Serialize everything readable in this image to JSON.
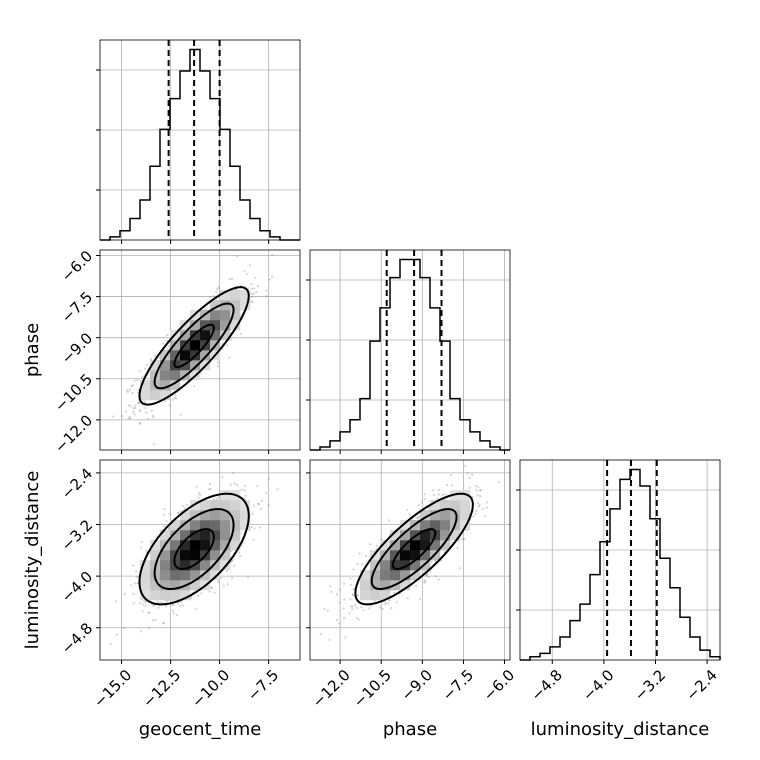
{
  "chart_data": {
    "type": "corner",
    "parameters": [
      "geocent_time",
      "phase",
      "luminosity_distance"
    ],
    "axis_labels": {
      "geocent_time": "geocent_time",
      "phase": "phase",
      "luminosity_distance": "luminosity_distance"
    },
    "ranges": {
      "geocent_time": [
        -16.1,
        -5.9
      ],
      "phase": [
        -13.1,
        -5.8
      ],
      "luminosity_distance": [
        -5.3,
        -2.2
      ]
    },
    "ticks": {
      "geocent_time": [
        -15.0,
        -12.5,
        -10.0,
        -7.5
      ],
      "phase": [
        -12.0,
        -10.5,
        -9.0,
        -7.5,
        -6.0
      ],
      "luminosity_distance": [
        -4.8,
        -4.0,
        -3.2,
        -2.4
      ]
    },
    "tick_labels": {
      "geocent_time": [
        "−15.0",
        "−12.5",
        "−10.0",
        "−7.5"
      ],
      "phase": [
        "−12.0",
        "−10.5",
        "−9.0",
        "−7.5",
        "−6.0"
      ],
      "luminosity_distance": [
        "−4.8",
        "−4.0",
        "−3.2",
        "−2.4"
      ]
    },
    "quantiles": {
      "geocent_time": [
        -12.6,
        -11.3,
        -10.0
      ],
      "phase": [
        -10.3,
        -9.3,
        -8.3
      ],
      "luminosity_distance": [
        -3.95,
        -3.58,
        -3.18
      ]
    },
    "histograms": {
      "geocent_time": {
        "edges": [
          -16.1,
          -15.59,
          -15.08,
          -14.57,
          -14.06,
          -13.55,
          -13.04,
          -12.53,
          -12.02,
          -11.51,
          -11.0,
          -10.49,
          -9.98,
          -9.47,
          -8.96,
          -8.45,
          -7.94,
          -7.43,
          -6.92,
          -6.41,
          -5.9
        ],
        "counts": [
          0,
          1,
          3,
          7,
          13,
          24,
          36,
          46,
          55,
          62,
          55,
          46,
          36,
          24,
          13,
          7,
          3,
          1,
          0,
          0
        ]
      },
      "phase": {
        "edges": [
          -13.1,
          -12.735,
          -12.37,
          -12.005,
          -11.64,
          -11.275,
          -10.91,
          -10.545,
          -10.18,
          -9.815,
          -9.45,
          -9.085,
          -8.72,
          -8.355,
          -7.99,
          -7.625,
          -7.26,
          -6.895,
          -6.53,
          -6.165,
          -5.8
        ],
        "counts": [
          0,
          1,
          3,
          6,
          10,
          17,
          36,
          47,
          57,
          63,
          63,
          57,
          47,
          36,
          17,
          10,
          6,
          3,
          1,
          0
        ]
      },
      "luminosity_distance": {
        "edges": [
          -5.3,
          -5.145,
          -4.99,
          -4.835,
          -4.68,
          -4.525,
          -4.37,
          -4.215,
          -4.06,
          -3.905,
          -3.75,
          -3.595,
          -3.44,
          -3.285,
          -3.13,
          -2.975,
          -2.82,
          -2.665,
          -2.51,
          -2.355,
          -2.2
        ],
        "counts": [
          0,
          1,
          2,
          4,
          7,
          12,
          17,
          26,
          36,
          46,
          55,
          58,
          53,
          43,
          31,
          22,
          13,
          7,
          3,
          1
        ]
      }
    },
    "pairs": [
      {
        "x": "geocent_time",
        "y": "phase",
        "center": [
          -11.3,
          -9.3
        ],
        "sigma": [
          1.3,
          1.0
        ],
        "correlation": 0.85
      },
      {
        "x": "geocent_time",
        "y": "luminosity_distance",
        "center": [
          -11.3,
          -3.58
        ],
        "sigma": [
          1.3,
          0.4
        ],
        "correlation": 0.6
      },
      {
        "x": "phase",
        "y": "luminosity_distance",
        "center": [
          -9.3,
          -3.58
        ],
        "sigma": [
          1.0,
          0.4
        ],
        "correlation": 0.8
      }
    ],
    "grid": true,
    "colors": {
      "samples": "#808080",
      "contour": "#000000",
      "density_low": "#eeeeee",
      "density_high": "#000000",
      "quantile_line": "#000000",
      "grid": "#b0b0b0"
    }
  }
}
